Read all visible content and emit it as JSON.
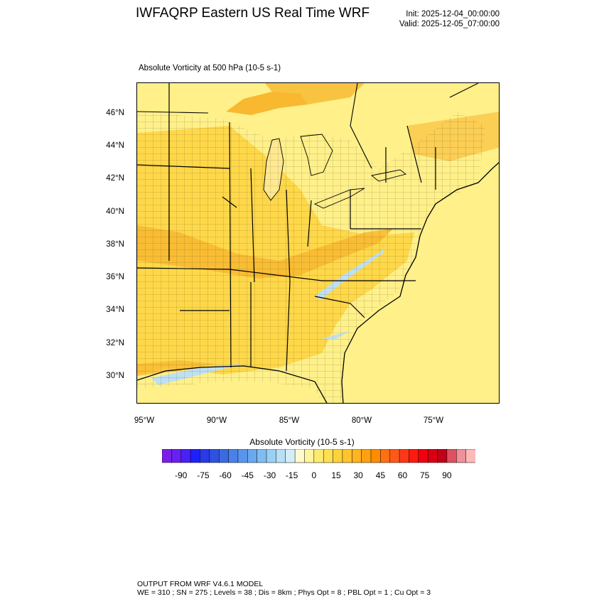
{
  "header": {
    "title": "IWFAQRP Eastern US Real Time WRF",
    "init": "Init: 2025-12-04_00:00:00",
    "valid": "Valid: 2025-12-05_07:00:00"
  },
  "map": {
    "subtitle": "Absolute Vorticity at 500 hPa   (10-5 s-1)",
    "lat_labels": [
      "46°N",
      "44°N",
      "42°N",
      "40°N",
      "38°N",
      "36°N",
      "34°N",
      "32°N",
      "30°N"
    ],
    "lon_labels": [
      "95°W",
      "90°W",
      "85°W",
      "80°W",
      "75°W"
    ],
    "colors": {
      "background_field": "#fff08a",
      "moderate_field": "#ffd84a",
      "strong_field": "#f8b830",
      "negative_field": "#bfe0f2",
      "lake": "#ffffff",
      "lines": "#000000"
    }
  },
  "colorbar": {
    "title": "Absolute Vorticity  (10-5 s-1)",
    "labels": [
      "-90",
      "-75",
      "-60",
      "-45",
      "-30",
      "-15",
      "0",
      "15",
      "30",
      "45",
      "60",
      "75",
      "90"
    ],
    "colors": [
      "#7a1fe8",
      "#6a20f0",
      "#4a20f8",
      "#2020ff",
      "#2a3ae8",
      "#3050e0",
      "#3a6ae0",
      "#4a80e8",
      "#5a95ec",
      "#6aa8f0",
      "#80bcf2",
      "#9ad0f4",
      "#b8e0f6",
      "#d4eef8",
      "#fffacc",
      "#fff4a0",
      "#ffea70",
      "#ffe050",
      "#ffd23a",
      "#ffc430",
      "#ffb420",
      "#ffa010",
      "#ff8c00",
      "#ff7010",
      "#ff5818",
      "#ff3818",
      "#ff1a10",
      "#f00010",
      "#d80010",
      "#c00018",
      "#e05060",
      "#f09098",
      "#ffb8b8"
    ]
  },
  "footer": {
    "line1": "OUTPUT FROM WRF V4.6.1 MODEL",
    "line2": "WE = 310 ; SN = 275 ; Levels = 38 ; Dis = 8km ; Phys Opt = 8 ; PBL Opt = 1 ; Cu Opt = 3"
  }
}
